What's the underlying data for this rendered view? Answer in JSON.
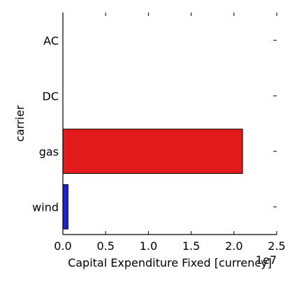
{
  "chart_data": {
    "type": "bar",
    "orientation": "horizontal",
    "categories": [
      "AC",
      "DC",
      "gas",
      "wind"
    ],
    "values": [
      0,
      0,
      21000000,
      600000
    ],
    "colors": [
      "#e31a1c",
      "#e31a1c",
      "#e31a1c",
      "#2020d8"
    ],
    "xlabel": "Capital Expenditure Fixed [currency]",
    "ylabel": "carrier",
    "xlim": [
      0,
      25000000
    ],
    "x_ticks": [
      0,
      5000000,
      10000000,
      15000000,
      20000000,
      25000000
    ],
    "x_tick_labels": [
      "0.0",
      "0.5",
      "1.0",
      "1.5",
      "2.0",
      "2.5"
    ],
    "x_offset_label": "1e7",
    "grid": false,
    "legend": "none"
  }
}
